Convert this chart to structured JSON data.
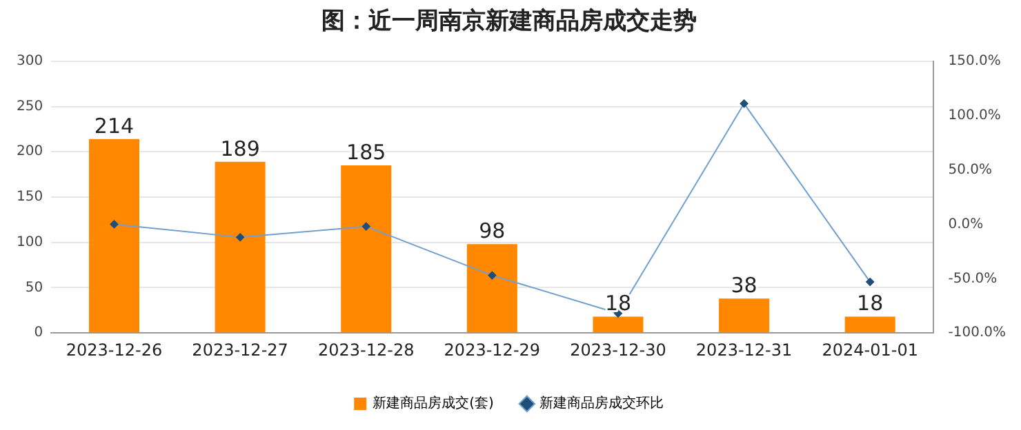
{
  "chart_data": {
    "type": "bar",
    "title": "图：近一周南京新建商品房成交走势",
    "categories": [
      "2023-12-26",
      "2023-12-27",
      "2023-12-28",
      "2023-12-29",
      "2023-12-30",
      "2023-12-31",
      "2024-01-01"
    ],
    "series": [
      {
        "name": "新建商品房成交(套)",
        "color": "#ff8800",
        "values": [
          214,
          189,
          185,
          98,
          18,
          38,
          18
        ],
        "value_labels": [
          "214",
          "189",
          "185",
          "98",
          "18",
          "38",
          "18"
        ]
      },
      {
        "name": "新建商品房成交环比",
        "type": "line",
        "axis": "y2",
        "color": "#6fa0d0",
        "marker": "diamond",
        "values": [
          0,
          -12,
          -2,
          -47,
          -82,
          111,
          -53
        ]
      }
    ],
    "ylim": [
      0,
      300
    ],
    "yticks": [
      0,
      50,
      100,
      150,
      200,
      250,
      300
    ],
    "y2lim": [
      -100,
      150
    ],
    "y2ticks": [
      {
        "value": -100,
        "label": "-100.0%"
      },
      {
        "value": -50,
        "label": "-50.0%"
      },
      {
        "value": 0,
        "label": "0.0%"
      },
      {
        "value": 50,
        "label": "50.0%"
      },
      {
        "value": 100,
        "label": "100.0%"
      },
      {
        "value": 150,
        "label": "150.0%"
      }
    ],
    "grid": "y",
    "legend": "bottom"
  }
}
